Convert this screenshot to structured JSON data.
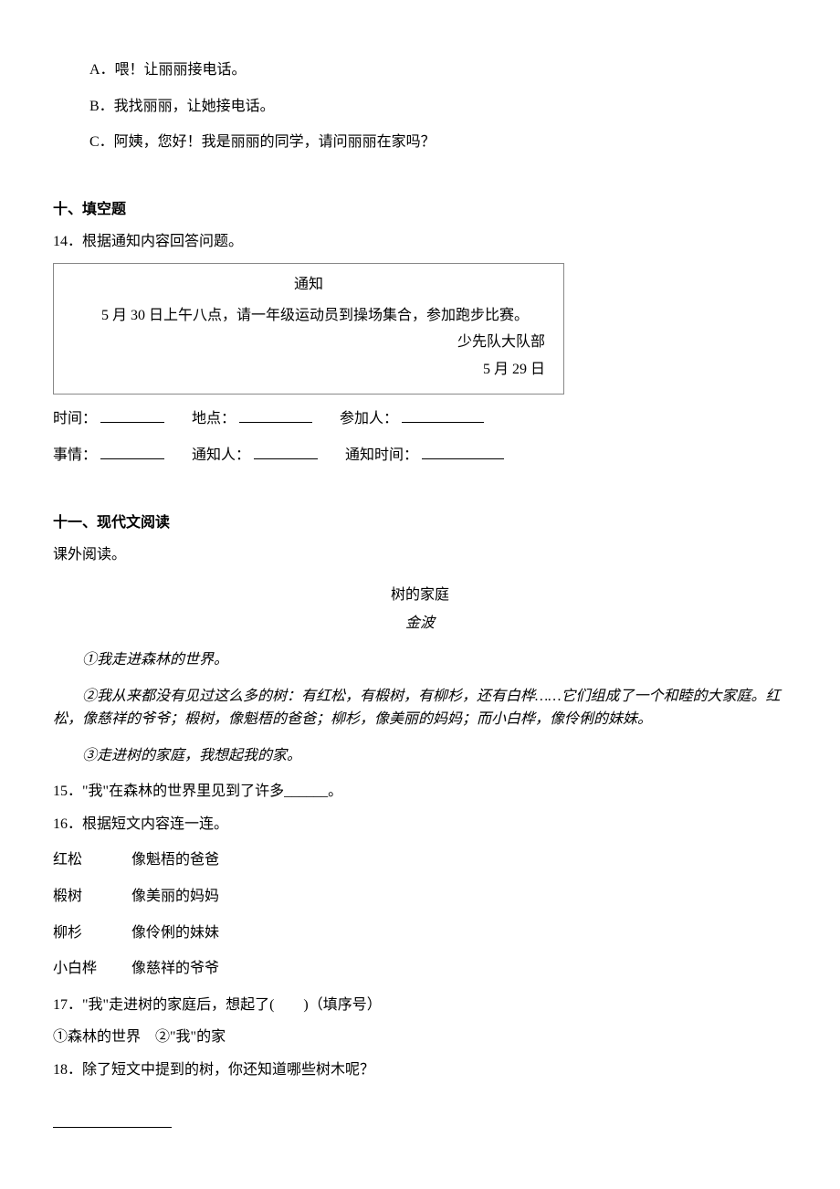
{
  "q13_options": {
    "A": "A．喂！让丽丽接电话。",
    "B": "B．我找丽丽，让她接电话。",
    "C": "C．阿姨，您好！我是丽丽的同学，请问丽丽在家吗？"
  },
  "section10": {
    "header": "十、填空题",
    "q14_stem": "14．根据通知内容回答问题。",
    "notice": {
      "title": "通知",
      "body": "5 月 30 日上午八点，请一年级运动员到操场集合，参加跑步比赛。",
      "sign1": "少先队大队部",
      "sign2": "5 月 29 日"
    },
    "fields": {
      "time": "时间：",
      "place": "地点：",
      "attendee": "参加人：",
      "matter": "事情：",
      "notifier": "通知人：",
      "notify_time": "通知时间："
    }
  },
  "section11": {
    "header": "十一、现代文阅读",
    "sub": "课外阅读。",
    "title": "树的家庭",
    "author": "金波",
    "p1": "①我走进森林的世界。",
    "p2": "②我从来都没有见过这么多的树：有红松，有椴树，有柳杉，还有白桦……它们组成了一个和睦的大家庭。红松，像慈祥的爷爷；椴树，像魁梧的爸爸；柳杉，像美丽的妈妈；而小白桦，像伶俐的妹妹。",
    "p3": "③走进树的家庭，我想起我的家。",
    "q15": "15．\"我\"在森林的世界里见到了许多______。",
    "q16": "16．根据短文内容连一连。",
    "match": [
      {
        "left": "红松",
        "right": "像魁梧的爸爸"
      },
      {
        "left": "椴树",
        "right": "像美丽的妈妈"
      },
      {
        "left": "柳杉",
        "right": "像伶俐的妹妹"
      },
      {
        "left": "小白桦",
        "right": "像慈祥的爷爷"
      }
    ],
    "q17": "17．\"我\"走进树的家庭后，想起了(　　)（填序号）",
    "q17_opts": "①森林的世界　②\"我\"的家",
    "q18": "18．除了短文中提到的树，你还知道哪些树木呢？"
  }
}
